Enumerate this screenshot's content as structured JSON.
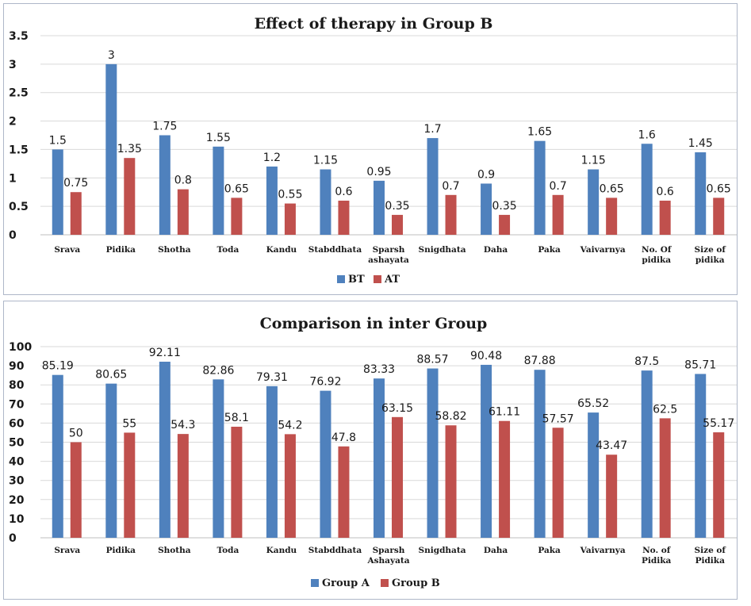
{
  "chart_data": [
    {
      "type": "bar",
      "title": "Effect of therapy in Group B",
      "categories": [
        [
          "Srava"
        ],
        [
          "Pidika"
        ],
        [
          "Shotha"
        ],
        [
          "Toda"
        ],
        [
          "Kandu"
        ],
        [
          "Stabddhata"
        ],
        [
          "Sparsh",
          "ashayata"
        ],
        [
          "Snigdhata"
        ],
        [
          "Daha"
        ],
        [
          "Paka"
        ],
        [
          "Vaivarnya"
        ],
        [
          "No. Of",
          "pidika"
        ],
        [
          "Size of",
          "pidika"
        ]
      ],
      "series": [
        {
          "name": "BT",
          "color": "#4f81bd",
          "values": [
            1.5,
            3,
            1.75,
            1.55,
            1.2,
            1.15,
            0.95,
            1.7,
            0.9,
            1.65,
            1.15,
            1.6,
            1.45
          ]
        },
        {
          "name": "AT",
          "color": "#c0504d",
          "values": [
            0.75,
            1.35,
            0.8,
            0.65,
            0.55,
            0.6,
            0.35,
            0.7,
            0.35,
            0.7,
            0.65,
            0.6,
            0.65
          ]
        }
      ],
      "yticks": [
        "0",
        "0.5",
        "1",
        "1.5",
        "2",
        "2.5",
        "3",
        "3.5"
      ],
      "ylim": [
        0,
        3.5
      ],
      "grid": true,
      "legend_position": "bottom"
    },
    {
      "type": "bar",
      "title": "Comparison in inter Group",
      "categories": [
        [
          "Srava"
        ],
        [
          "Pidika"
        ],
        [
          "Shotha"
        ],
        [
          "Toda"
        ],
        [
          "Kandu"
        ],
        [
          "Stabddhata"
        ],
        [
          "Sparsh",
          "Ashayata"
        ],
        [
          "Snigdhata"
        ],
        [
          "Daha"
        ],
        [
          "Paka"
        ],
        [
          "Vaivarnya"
        ],
        [
          "No. of",
          "Pidika"
        ],
        [
          "Size of",
          "Pidika"
        ]
      ],
      "series": [
        {
          "name": "Group A",
          "color": "#4f81bd",
          "values": [
            85.19,
            80.65,
            92.11,
            82.86,
            79.31,
            76.92,
            83.33,
            88.57,
            90.48,
            87.88,
            65.52,
            87.5,
            85.71
          ]
        },
        {
          "name": "Group B",
          "color": "#c0504d",
          "values": [
            50,
            55,
            54.3,
            58.1,
            54.2,
            47.8,
            63.15,
            58.82,
            61.11,
            57.57,
            43.47,
            62.5,
            55.17
          ]
        }
      ],
      "yticks": [
        "0",
        "10",
        "20",
        "30",
        "40",
        "50",
        "60",
        "70",
        "80",
        "90",
        "100"
      ],
      "ylim": [
        0,
        100
      ],
      "grid": true,
      "legend_position": "bottom"
    }
  ]
}
